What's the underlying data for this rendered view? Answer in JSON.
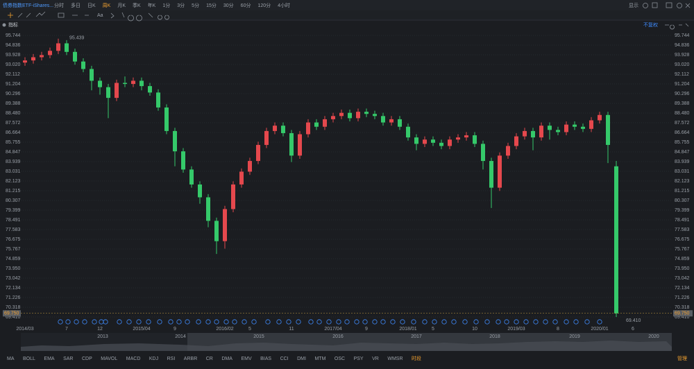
{
  "toolbar": {
    "title": "债券指数ETF-iShares...",
    "periods": [
      "分时",
      "多日",
      "日K",
      "周K",
      "月K",
      "季K",
      "年K",
      "1分",
      "3分",
      "5分",
      "15分",
      "30分",
      "60分",
      "120分",
      "4小时"
    ],
    "active_period": 3,
    "display": "显示"
  },
  "indicator_bar": {
    "label": "指标",
    "adjust": "不复权"
  },
  "chart_data": {
    "type": "candlestick",
    "categories": [
      "2014/03",
      null,
      null,
      null,
      null,
      "7",
      null,
      null,
      null,
      "12",
      null,
      null,
      null,
      null,
      "2015/04",
      null,
      null,
      null,
      "9",
      null,
      null,
      null,
      null,
      null,
      "2016/02",
      null,
      null,
      "5",
      null,
      null,
      null,
      null,
      "11",
      null,
      null,
      null,
      null,
      "2017/04",
      null,
      null,
      null,
      "9",
      null,
      null,
      null,
      null,
      "2018/01",
      null,
      null,
      "5",
      null,
      null,
      null,
      null,
      "10",
      null,
      null,
      null,
      null,
      "2019/03",
      null,
      null,
      null,
      null,
      "8",
      null,
      null,
      null,
      null,
      "2020/01",
      null,
      null,
      null,
      "6",
      null,
      null
    ],
    "series": [
      {
        "up_color": "#e5484d",
        "down_color": "#35c96a",
        "values": [
          [
            93.2,
            93.7,
            92.9,
            93.4
          ],
          [
            93.4,
            94.0,
            93.1,
            93.7
          ],
          [
            93.7,
            94.2,
            93.4,
            93.9
          ],
          [
            93.9,
            94.6,
            93.6,
            94.3
          ],
          [
            94.3,
            95.439,
            94.0,
            95.0
          ],
          [
            95.0,
            95.3,
            93.9,
            94.2
          ],
          [
            94.2,
            94.5,
            93.0,
            93.3
          ],
          [
            93.3,
            93.6,
            92.3,
            92.6
          ],
          [
            92.6,
            92.9,
            90.6,
            91.5
          ],
          [
            91.5,
            91.8,
            90.2,
            90.9
          ],
          [
            90.9,
            91.2,
            88.0,
            89.9
          ],
          [
            89.9,
            91.6,
            89.6,
            91.3
          ],
          [
            91.3,
            91.9,
            90.9,
            91.2
          ],
          [
            91.2,
            91.8,
            90.9,
            91.5
          ],
          [
            91.5,
            91.8,
            90.6,
            91.0
          ],
          [
            91.0,
            91.3,
            90.1,
            90.4
          ],
          [
            90.4,
            90.7,
            88.7,
            89.0
          ],
          [
            89.0,
            89.3,
            86.5,
            86.8
          ],
          [
            86.8,
            87.1,
            83.5,
            84.9
          ],
          [
            84.9,
            85.2,
            82.9,
            83.2
          ],
          [
            83.2,
            83.5,
            81.5,
            81.8
          ],
          [
            81.8,
            82.1,
            80.0,
            80.6
          ],
          [
            80.6,
            80.9,
            77.8,
            78.4
          ],
          [
            78.4,
            78.7,
            75.3,
            76.5
          ],
          [
            76.5,
            79.8,
            75.8,
            79.5
          ],
          [
            79.5,
            82.1,
            79.2,
            81.8
          ],
          [
            81.8,
            83.3,
            81.5,
            83.0
          ],
          [
            83.0,
            84.3,
            82.7,
            84.0
          ],
          [
            84.0,
            85.8,
            83.7,
            85.5
          ],
          [
            85.5,
            87.1,
            85.2,
            86.8
          ],
          [
            86.8,
            87.6,
            86.5,
            87.3
          ],
          [
            87.3,
            87.6,
            86.3,
            86.6
          ],
          [
            86.6,
            86.9,
            83.9,
            84.5
          ],
          [
            84.5,
            86.8,
            84.2,
            86.5
          ],
          [
            86.5,
            87.9,
            86.2,
            87.6
          ],
          [
            87.6,
            87.9,
            86.9,
            87.2
          ],
          [
            87.2,
            88.2,
            86.9,
            87.9
          ],
          [
            87.9,
            88.5,
            87.6,
            88.2
          ],
          [
            88.2,
            88.8,
            87.9,
            88.5
          ],
          [
            88.5,
            88.8,
            87.7,
            88.0
          ],
          [
            88.0,
            88.9,
            87.7,
            88.6
          ],
          [
            88.6,
            88.9,
            88.1,
            88.4
          ],
          [
            88.4,
            88.7,
            87.9,
            88.2
          ],
          [
            88.2,
            88.5,
            87.3,
            87.6
          ],
          [
            87.6,
            88.2,
            87.3,
            87.9
          ],
          [
            87.9,
            88.2,
            86.9,
            87.2
          ],
          [
            87.2,
            87.5,
            85.9,
            86.2
          ],
          [
            86.2,
            86.5,
            85.0,
            85.6
          ],
          [
            85.6,
            86.3,
            85.3,
            86.0
          ],
          [
            86.0,
            86.3,
            85.4,
            85.7
          ],
          [
            85.7,
            86.0,
            85.1,
            85.4
          ],
          [
            85.4,
            86.3,
            85.1,
            86.0
          ],
          [
            86.0,
            86.5,
            85.7,
            86.2
          ],
          [
            86.2,
            86.7,
            85.9,
            86.4
          ],
          [
            86.4,
            86.7,
            85.3,
            85.6
          ],
          [
            85.6,
            85.9,
            83.2,
            84.0
          ],
          [
            84.0,
            84.3,
            79.6,
            81.5
          ],
          [
            81.5,
            84.8,
            81.2,
            84.5
          ],
          [
            84.5,
            85.7,
            84.2,
            85.4
          ],
          [
            85.4,
            86.6,
            85.1,
            86.3
          ],
          [
            86.3,
            87.1,
            86.0,
            86.8
          ],
          [
            86.8,
            87.1,
            85.0,
            86.2
          ],
          [
            86.2,
            87.6,
            85.9,
            87.3
          ],
          [
            87.3,
            87.6,
            86.0,
            86.9
          ],
          [
            86.9,
            87.2,
            86.4,
            86.7
          ],
          [
            86.7,
            87.7,
            86.4,
            87.4
          ],
          [
            87.4,
            87.7,
            86.9,
            87.2
          ],
          [
            87.2,
            87.5,
            86.7,
            87.0
          ],
          [
            87.0,
            88.1,
            86.7,
            87.8
          ],
          [
            87.8,
            88.6,
            87.5,
            88.3
          ],
          [
            88.3,
            88.6,
            83.8,
            85.5
          ],
          [
            83.5,
            84.0,
            69.41,
            69.75
          ],
          null,
          null,
          null,
          null
        ]
      }
    ],
    "high_label": "95.439",
    "low_label": "69.410",
    "last_label": "69.750",
    "ylim": [
      69.215,
      96.198
    ],
    "yticks": [
      95.744,
      94.836,
      93.928,
      {
        "value": 93.02,
        "label": "93.020"
      },
      92.112,
      91.204,
      90.296,
      89.388,
      {
        "value": 88.48,
        "label": "88.480"
      },
      87.572,
      86.664,
      85.755,
      84.847,
      83.939,
      83.031,
      82.123,
      81.215,
      80.307,
      79.399,
      78.491,
      77.583,
      76.675,
      75.767,
      74.859,
      {
        "value": 73.95,
        "label": "73.950"
      },
      73.042,
      72.134,
      71.226,
      70.318,
      {
        "value": 69.41,
        "label": "69.410"
      }
    ],
    "grid": true
  },
  "navigator_years": [
    "2013",
    "2014",
    "2015",
    "2016",
    "2017",
    "2018",
    "2019",
    "2020"
  ],
  "indicators": [
    "MA",
    "BOLL",
    "EMA",
    "SAR",
    "CDP",
    "MAVOL",
    "MACD",
    "KDJ",
    "RSI",
    "ARBR",
    "CR",
    "DMA",
    "EMV",
    "BIAS",
    "CCI",
    "DMI",
    "MTM",
    "OSC",
    "PSY",
    "VR",
    "WMSR",
    "时段"
  ],
  "manage": "管理"
}
